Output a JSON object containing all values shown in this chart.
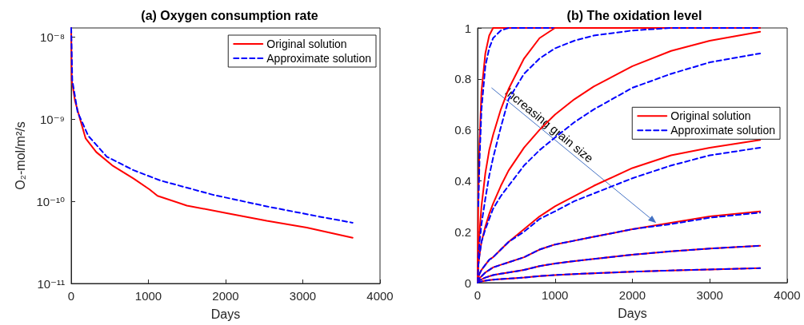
{
  "chart_data": [
    {
      "type": "line",
      "title": "(a) Oxygen consumption rate",
      "xlabel": "Days",
      "ylabel": "O₂-mol/m²/s",
      "log": "y",
      "xlim": [
        0,
        4000
      ],
      "xticks": [
        0,
        1000,
        2000,
        3000,
        4000
      ],
      "ylim": [
        1e-11,
        1.3e-08
      ],
      "yticks": [
        {
          "value": 1e-11,
          "label": "10⁻¹¹"
        },
        {
          "value": 1e-10,
          "label": "10⁻¹⁰"
        },
        {
          "value": 1e-09,
          "label": "10⁻⁹"
        },
        {
          "value": 1e-08,
          "label": "10⁻⁸"
        }
      ],
      "grid": false,
      "legend": "top right",
      "marker": "none",
      "series": [
        {
          "name": "Original solution",
          "color": "#ff0000",
          "line_style": "solid",
          "x": [
            0,
            7,
            50,
            117,
            186,
            324,
            531,
            808,
            1015,
            1118,
            1498,
            2016,
            2533,
            3051,
            3645
          ],
          "values": [
            1.3e-08,
            3e-09,
            1.67e-09,
            9.9e-10,
            5.9e-10,
            4e-10,
            2.75e-10,
            1.9e-10,
            1.4e-10,
            1.17e-10,
            8.9e-11,
            7.2e-11,
            5.8e-11,
            4.8e-11,
            3.6e-11
          ]
        },
        {
          "name": "Approximate solution",
          "color": "#0000ff",
          "line_style": "dashed",
          "x": [
            0,
            14,
            83,
            221,
            462,
            808,
            1153,
            1843,
            2533,
            3223,
            3645
          ],
          "values": [
            1.3e-08,
            3e-09,
            1.23e-09,
            6.3e-10,
            3.5e-10,
            2.4e-10,
            1.8e-10,
            1.2e-10,
            8.7e-11,
            6.5e-11,
            5.5e-11
          ]
        }
      ]
    },
    {
      "type": "line",
      "title": "(b) The oxidation level",
      "xlabel": "Days",
      "xlim": [
        0,
        4000
      ],
      "xticks": [
        0,
        1000,
        2000,
        3000,
        4000
      ],
      "ylim": [
        0,
        1
      ],
      "yticks": [
        0,
        0.2,
        0.4,
        0.6,
        0.8,
        1
      ],
      "grid": false,
      "legend": "right",
      "marker": "none",
      "annotations": [
        "Increasing grain size"
      ],
      "x": [
        0,
        10,
        25,
        50,
        100,
        150,
        200,
        300,
        400,
        600,
        800,
        1000,
        1250,
        1500,
        2000,
        2500,
        3000,
        3650
      ],
      "series": [
        {
          "name": "Original solution",
          "color": "#ff0000",
          "line_style": "solid",
          "values": [
            0,
            0.35,
            0.55,
            0.75,
            0.9,
            0.97,
            1,
            1,
            1,
            1,
            1,
            1,
            1,
            1,
            1,
            1,
            1,
            1
          ]
        },
        {
          "name": "Approximate solution",
          "color": "#0000ff",
          "line_style": "dashed",
          "x": [
            10,
            25,
            50,
            100,
            150,
            200,
            300,
            400,
            600,
            800,
            1000,
            1250,
            1500,
            2000,
            2500,
            3000,
            3650
          ],
          "values": [
            0.3,
            0.48,
            0.68,
            0.85,
            0.92,
            0.96,
            0.99,
            1,
            1,
            1,
            1,
            1,
            1,
            1,
            1,
            1,
            1
          ]
        },
        {
          "color": "#ff0000",
          "line_style": "solid",
          "values": [
            0,
            0.12,
            0.2,
            0.3,
            0.43,
            0.52,
            0.58,
            0.68,
            0.76,
            0.88,
            0.96,
            1,
            1,
            1,
            1,
            1,
            1,
            1
          ]
        },
        {
          "color": "#0000ff",
          "line_style": "dashed",
          "x": [
            10,
            25,
            50,
            100,
            150,
            200,
            300,
            400,
            600,
            800,
            1000,
            1250,
            1500,
            2000,
            2500,
            3000,
            3650
          ],
          "values": [
            0.1,
            0.16,
            0.23,
            0.33,
            0.42,
            0.49,
            0.61,
            0.72,
            0.82,
            0.88,
            0.92,
            0.95,
            0.97,
            0.99,
            1,
            1,
            1
          ]
        },
        {
          "color": "#ff0000",
          "line_style": "solid",
          "values": [
            0,
            0.07,
            0.11,
            0.16,
            0.22,
            0.27,
            0.31,
            0.38,
            0.44,
            0.53,
            0.6,
            0.66,
            0.72,
            0.77,
            0.85,
            0.91,
            0.95,
            0.985
          ]
        },
        {
          "color": "#0000ff",
          "line_style": "dashed",
          "values": [
            0,
            0.07,
            0.11,
            0.16,
            0.21,
            0.25,
            0.29,
            0.34,
            0.38,
            0.46,
            0.52,
            0.57,
            0.63,
            0.68,
            0.765,
            0.82,
            0.865,
            0.9
          ]
        },
        {
          "color": "#ff0000",
          "line_style": "solid",
          "values": [
            0,
            0.02,
            0.035,
            0.05,
            0.07,
            0.09,
            0.1,
            0.13,
            0.16,
            0.21,
            0.26,
            0.3,
            0.34,
            0.38,
            0.45,
            0.5,
            0.53,
            0.56
          ]
        },
        {
          "color": "#0000ff",
          "line_style": "dashed",
          "values": [
            0,
            0.02,
            0.035,
            0.05,
            0.07,
            0.09,
            0.1,
            0.13,
            0.16,
            0.2,
            0.25,
            0.28,
            0.32,
            0.35,
            0.41,
            0.46,
            0.5,
            0.53
          ]
        },
        {
          "color": "#ff0000",
          "line_style": "solid",
          "values": [
            0,
            0.01,
            0.018,
            0.025,
            0.04,
            0.05,
            0.06,
            0.07,
            0.08,
            0.1,
            0.13,
            0.15,
            0.165,
            0.18,
            0.21,
            0.235,
            0.26,
            0.28
          ]
        },
        {
          "color": "#0000ff",
          "line_style": "dashed",
          "values": [
            0,
            0.01,
            0.018,
            0.025,
            0.04,
            0.05,
            0.06,
            0.07,
            0.08,
            0.1,
            0.13,
            0.15,
            0.165,
            0.18,
            0.21,
            0.23,
            0.255,
            0.275
          ]
        },
        {
          "color": "#ff0000",
          "line_style": "solid",
          "values": [
            0,
            0.005,
            0.01,
            0.013,
            0.02,
            0.025,
            0.03,
            0.035,
            0.04,
            0.05,
            0.065,
            0.075,
            0.085,
            0.093,
            0.11,
            0.123,
            0.134,
            0.145
          ]
        },
        {
          "color": "#0000ff",
          "line_style": "dashed",
          "values": [
            0,
            0.005,
            0.01,
            0.013,
            0.02,
            0.025,
            0.03,
            0.035,
            0.04,
            0.05,
            0.065,
            0.075,
            0.085,
            0.093,
            0.11,
            0.123,
            0.134,
            0.145
          ]
        },
        {
          "color": "#ff0000",
          "line_style": "solid",
          "values": [
            0,
            0.002,
            0.004,
            0.005,
            0.008,
            0.01,
            0.012,
            0.014,
            0.016,
            0.02,
            0.026,
            0.03,
            0.034,
            0.037,
            0.043,
            0.048,
            0.052,
            0.057
          ]
        },
        {
          "color": "#0000ff",
          "line_style": "dashed",
          "values": [
            0,
            0.002,
            0.004,
            0.005,
            0.008,
            0.01,
            0.012,
            0.014,
            0.016,
            0.02,
            0.026,
            0.03,
            0.034,
            0.037,
            0.043,
            0.048,
            0.052,
            0.057
          ]
        }
      ]
    }
  ]
}
